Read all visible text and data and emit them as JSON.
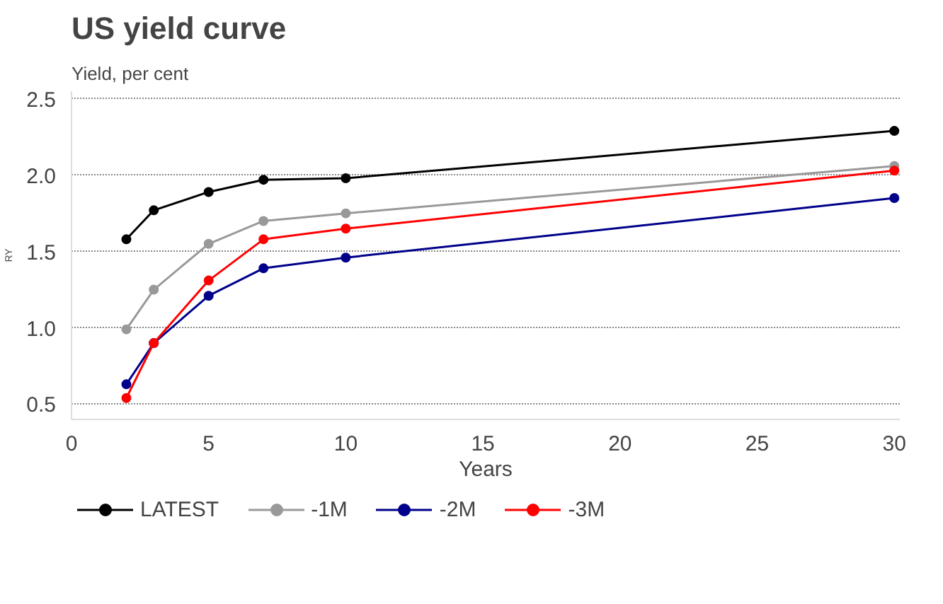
{
  "chart_data": {
    "type": "line",
    "title": "US yield curve",
    "subtitle": "Yield, per cent",
    "xlabel": "Years",
    "ylabel": "RY",
    "x": [
      2,
      3,
      5,
      7,
      10,
      30
    ],
    "series": [
      {
        "name": "LATEST",
        "color": "#000000",
        "values": [
          1.58,
          1.77,
          1.89,
          1.97,
          1.98,
          2.29
        ]
      },
      {
        "name": "-1M",
        "color": "#999999",
        "values": [
          0.99,
          1.25,
          1.55,
          1.7,
          1.75,
          2.06
        ]
      },
      {
        "name": "-2M",
        "color": "#00008b",
        "values": [
          0.63,
          0.9,
          1.21,
          1.39,
          1.46,
          1.85
        ]
      },
      {
        "name": "-3M",
        "color": "#ff0000",
        "values": [
          0.54,
          0.9,
          1.31,
          1.58,
          1.65,
          2.03
        ]
      }
    ],
    "xlim": [
      0,
      30.2
    ],
    "ylim": [
      0.4,
      2.55
    ],
    "xticks": [
      0,
      5,
      10,
      15,
      20,
      25,
      30
    ],
    "yticks": [
      0.5,
      {
        "value": 1,
        "label": "1.0"
      },
      1.5,
      {
        "value": 2,
        "label": "2.0"
      },
      2.5
    ],
    "grid": "y",
    "legend": "bottom",
    "marker": "circle",
    "line_style": "solid"
  }
}
